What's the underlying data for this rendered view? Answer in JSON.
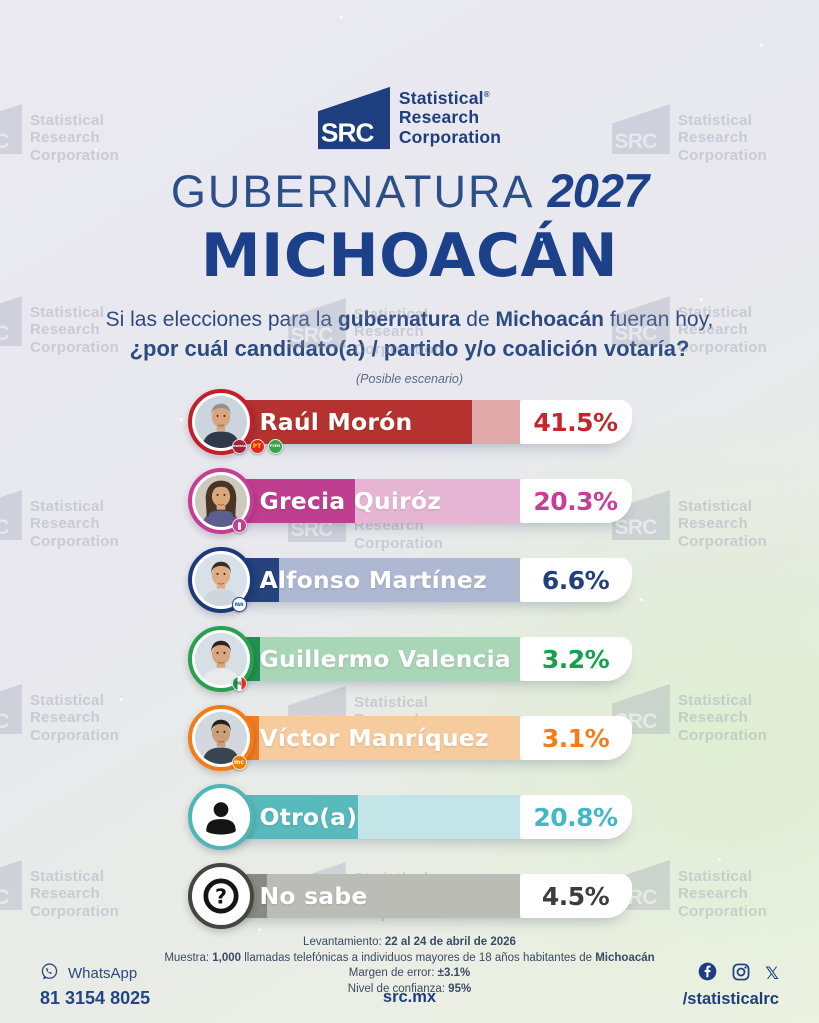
{
  "brand": {
    "abbr": "SRC",
    "line1": "Statistical",
    "reg": "®",
    "line2": "Research",
    "line3": "Corporation",
    "navy": "#1e3f7f"
  },
  "header": {
    "kicker": "GUBERNATURA",
    "year": "2027",
    "state": "MICHOACÁN",
    "question_line1": [
      {
        "t": "Si las elecciones para la "
      },
      {
        "t": "gubernatura",
        "b": 1
      },
      {
        "t": " de "
      },
      {
        "t": "Michoacán",
        "b": 1
      },
      {
        "t": " fueran hoy,"
      }
    ],
    "question_line2": "¿por cuál candidato(a) / partido y/o coalición votaría?",
    "note": "(Posible escenario)"
  },
  "chart_data": {
    "type": "bar",
    "orientation": "horizontal",
    "unit": "percent",
    "title": "Gubernatura 2027 Michoacán (Posible escenario)",
    "categories": [
      "Raúl Morón",
      "Grecia Quiróz",
      "Alfonso Martínez",
      "Guillermo Valencia",
      "Víctor Manríquez",
      "Otro(a)",
      "No sabe"
    ],
    "values": [
      41.5,
      20.3,
      6.6,
      3.2,
      3.1,
      20.8,
      4.5
    ],
    "bars": [
      {
        "label": "Raúl Morón",
        "value": 41.5,
        "display": "41.5%",
        "fill": "#b43330",
        "tint": "#dfaaa7",
        "ring": "#c21f2b",
        "pct_color": "#c5262b",
        "parties": [
          "morena",
          "pt",
          "pvem"
        ],
        "avatar": {
          "kind": "photo",
          "bg": "#ccd4dd",
          "hair": "#8f9094",
          "skin": "#d8a57c",
          "shirt": "#2e3a4a",
          "mustache": true
        }
      },
      {
        "label": "Grecia Quiróz",
        "value": 20.3,
        "display": "20.3%",
        "fill": "#c03e8f",
        "tint": "#e6b5d3",
        "ring": "#c43e95",
        "pct_color": "#c93d97",
        "parties": [
          "ind"
        ],
        "avatar": {
          "kind": "photo",
          "bg": "#cfc8bd",
          "hair": "#4a3426",
          "skin": "#d9a87f",
          "shirt": "#5a5f8e",
          "female": true
        }
      },
      {
        "label": "Alfonso Martínez",
        "value": 6.6,
        "display": "6.6%",
        "fill": "#26437f",
        "tint": "#aeb8d2",
        "ring": "#1c3a7a",
        "pct_color": "#21407d",
        "parties": [
          "pan"
        ],
        "avatar": {
          "kind": "photo",
          "bg": "#d8e0e8",
          "hair": "#3a2e28",
          "skin": "#e0ad83",
          "shirt": "#cfd6dd"
        }
      },
      {
        "label": "Guillermo Valencia",
        "value": 3.2,
        "display": "3.2%",
        "fill": "#219150",
        "tint": "#a9d6b6",
        "ring": "#2aa04e",
        "pct_color": "#12a24d",
        "parties": [
          "pri"
        ],
        "avatar": {
          "kind": "photo",
          "bg": "#d6dee6",
          "hair": "#2e241f",
          "skin": "#d8a57c",
          "shirt": "#e8eaec"
        }
      },
      {
        "label": "Víctor Manríquez",
        "value": 3.1,
        "display": "3.1%",
        "fill": "#ef7d22",
        "tint": "#f6cb9d",
        "ring": "#f07d18",
        "pct_color": "#f67c16",
        "parties": [
          "mc"
        ],
        "avatar": {
          "kind": "photo",
          "bg": "#d2d8de",
          "hair": "#2b211c",
          "skin": "#caa07a",
          "shirt": "#3a4450"
        }
      },
      {
        "label": "Otro(a)",
        "value": 20.8,
        "display": "20.8%",
        "fill": "#58babd",
        "tint": "#c3e5e7",
        "ring": "#4fb5b6",
        "pct_color": "#3fb9c6",
        "parties": [],
        "avatar": {
          "kind": "user",
          "bg": "#ffffff",
          "fg": "#151515"
        }
      },
      {
        "label": "No sabe",
        "value": 4.5,
        "display": "4.5%",
        "fill": "#8a8a84",
        "tint": "#bcbcb6",
        "ring": "#454541",
        "pct_color": "#3d3d3b",
        "parties": [],
        "avatar": {
          "kind": "question",
          "bg": "#ffffff",
          "fg": "#151515"
        }
      }
    ]
  },
  "party_logos": {
    "morena": {
      "bg": "#a02438",
      "fg": "#ffffff",
      "label": "morena"
    },
    "pt": {
      "bg": "#e3251b",
      "fg": "#ffd400",
      "label": "PT"
    },
    "pvem": {
      "bg": "#33a64b",
      "fg": "#ffffff",
      "label": "PVEM"
    },
    "ind": {
      "bg": "#c43e95",
      "fg": "#ffffff",
      "label": "I"
    },
    "pan": {
      "bg": "#ffffff",
      "fg": "#1a4a9e",
      "label": "PAN",
      "border": "#1a4a9e"
    },
    "pri": {
      "stripes": [
        "#0a9a47",
        "#ffffff",
        "#ee2a24"
      ],
      "fg": "#555555",
      "label": "PRI"
    },
    "mc": {
      "bg": "#f07c00",
      "fg": "#ffffff",
      "label": "mc"
    }
  },
  "methodology": [
    [
      {
        "t": "Levantamiento: "
      },
      {
        "t": "22 al 24 de abril de 2026",
        "b": 1
      }
    ],
    [
      {
        "t": "Muestra: "
      },
      {
        "t": "1,000",
        "b": 1
      },
      {
        "t": " llamadas telefónicas a individuos mayores de 18 años habitantes de "
      },
      {
        "t": "Michoacán",
        "b": 1
      }
    ],
    [
      {
        "t": "Margen de error: "
      },
      {
        "t": "±3.1%",
        "b": 1
      }
    ],
    [
      {
        "t": "Nivel de confianza: "
      },
      {
        "t": "95%",
        "b": 1
      }
    ]
  ],
  "footer": {
    "whatsapp_label": "WhatsApp",
    "whatsapp_number": "81 3154 8025",
    "website": "src.mx",
    "social_handle": "/statisticalrc"
  }
}
